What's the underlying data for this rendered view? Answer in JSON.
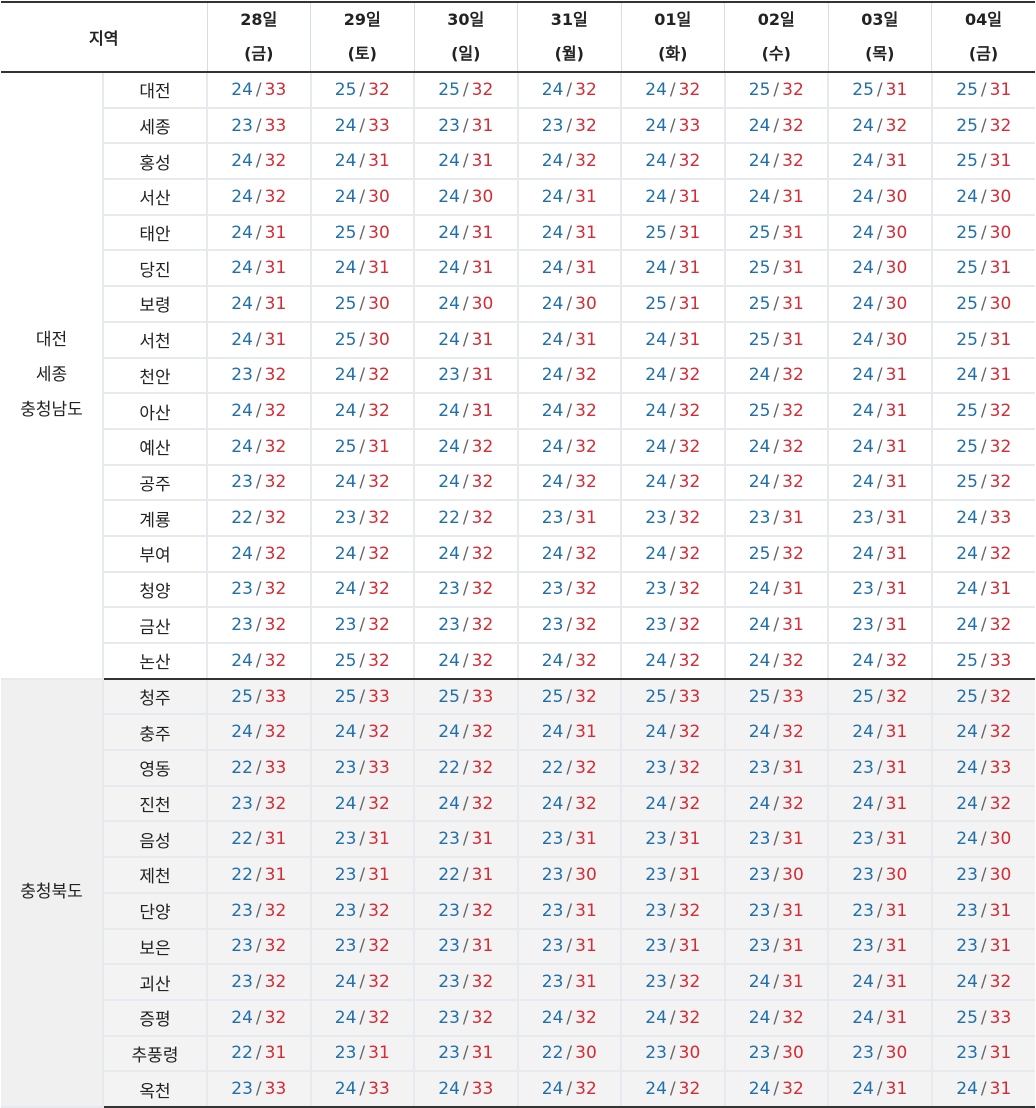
{
  "header": {
    "region_label": "지역",
    "days": [
      {
        "date": "28일",
        "weekday": "(금)"
      },
      {
        "date": "29일",
        "weekday": "(토)"
      },
      {
        "date": "30일",
        "weekday": "(일)"
      },
      {
        "date": "31일",
        "weekday": "(월)"
      },
      {
        "date": "01일",
        "weekday": "(화)"
      },
      {
        "date": "02일",
        "weekday": "(수)"
      },
      {
        "date": "03일",
        "weekday": "(목)"
      },
      {
        "date": "04일",
        "weekday": "(금)"
      }
    ]
  },
  "colors": {
    "low_temp": "#1f6fab",
    "high_temp": "#d62b35",
    "separator": "#666666"
  },
  "separator": "/",
  "groups": [
    {
      "region_lines": [
        "대전",
        "세종",
        "충청남도"
      ],
      "cities": [
        {
          "name": "대전",
          "temps": [
            [
              24,
              33
            ],
            [
              25,
              32
            ],
            [
              25,
              32
            ],
            [
              24,
              32
            ],
            [
              24,
              32
            ],
            [
              25,
              32
            ],
            [
              25,
              31
            ],
            [
              25,
              31
            ]
          ]
        },
        {
          "name": "세종",
          "temps": [
            [
              23,
              33
            ],
            [
              24,
              33
            ],
            [
              23,
              31
            ],
            [
              23,
              32
            ],
            [
              24,
              33
            ],
            [
              24,
              32
            ],
            [
              24,
              32
            ],
            [
              25,
              32
            ]
          ]
        },
        {
          "name": "홍성",
          "temps": [
            [
              24,
              32
            ],
            [
              24,
              31
            ],
            [
              24,
              31
            ],
            [
              24,
              32
            ],
            [
              24,
              32
            ],
            [
              24,
              32
            ],
            [
              24,
              31
            ],
            [
              25,
              31
            ]
          ]
        },
        {
          "name": "서산",
          "temps": [
            [
              24,
              32
            ],
            [
              24,
              30
            ],
            [
              24,
              30
            ],
            [
              24,
              31
            ],
            [
              24,
              31
            ],
            [
              24,
              31
            ],
            [
              24,
              30
            ],
            [
              24,
              30
            ]
          ]
        },
        {
          "name": "태안",
          "temps": [
            [
              24,
              31
            ],
            [
              25,
              30
            ],
            [
              24,
              31
            ],
            [
              24,
              31
            ],
            [
              25,
              31
            ],
            [
              25,
              31
            ],
            [
              24,
              30
            ],
            [
              25,
              30
            ]
          ]
        },
        {
          "name": "당진",
          "temps": [
            [
              24,
              31
            ],
            [
              24,
              31
            ],
            [
              24,
              31
            ],
            [
              24,
              31
            ],
            [
              24,
              31
            ],
            [
              25,
              31
            ],
            [
              24,
              30
            ],
            [
              25,
              31
            ]
          ]
        },
        {
          "name": "보령",
          "temps": [
            [
              24,
              31
            ],
            [
              25,
              30
            ],
            [
              24,
              30
            ],
            [
              24,
              30
            ],
            [
              25,
              31
            ],
            [
              25,
              31
            ],
            [
              24,
              30
            ],
            [
              25,
              30
            ]
          ]
        },
        {
          "name": "서천",
          "temps": [
            [
              24,
              31
            ],
            [
              25,
              30
            ],
            [
              24,
              31
            ],
            [
              24,
              31
            ],
            [
              24,
              31
            ],
            [
              25,
              31
            ],
            [
              24,
              30
            ],
            [
              25,
              31
            ]
          ]
        },
        {
          "name": "천안",
          "temps": [
            [
              23,
              32
            ],
            [
              24,
              32
            ],
            [
              23,
              31
            ],
            [
              24,
              32
            ],
            [
              24,
              32
            ],
            [
              24,
              32
            ],
            [
              24,
              31
            ],
            [
              24,
              31
            ]
          ]
        },
        {
          "name": "아산",
          "temps": [
            [
              24,
              32
            ],
            [
              24,
              32
            ],
            [
              24,
              31
            ],
            [
              24,
              32
            ],
            [
              24,
              32
            ],
            [
              25,
              32
            ],
            [
              24,
              31
            ],
            [
              25,
              32
            ]
          ]
        },
        {
          "name": "예산",
          "temps": [
            [
              24,
              32
            ],
            [
              25,
              31
            ],
            [
              24,
              32
            ],
            [
              24,
              32
            ],
            [
              24,
              32
            ],
            [
              24,
              32
            ],
            [
              24,
              31
            ],
            [
              25,
              32
            ]
          ]
        },
        {
          "name": "공주",
          "temps": [
            [
              23,
              32
            ],
            [
              24,
              32
            ],
            [
              24,
              32
            ],
            [
              24,
              32
            ],
            [
              24,
              32
            ],
            [
              24,
              32
            ],
            [
              24,
              31
            ],
            [
              25,
              32
            ]
          ]
        },
        {
          "name": "계룡",
          "temps": [
            [
              22,
              32
            ],
            [
              23,
              32
            ],
            [
              22,
              32
            ],
            [
              23,
              31
            ],
            [
              23,
              32
            ],
            [
              23,
              31
            ],
            [
              23,
              31
            ],
            [
              24,
              33
            ]
          ]
        },
        {
          "name": "부여",
          "temps": [
            [
              24,
              32
            ],
            [
              24,
              32
            ],
            [
              24,
              32
            ],
            [
              24,
              32
            ],
            [
              24,
              32
            ],
            [
              25,
              32
            ],
            [
              24,
              31
            ],
            [
              24,
              32
            ]
          ]
        },
        {
          "name": "청양",
          "temps": [
            [
              23,
              32
            ],
            [
              24,
              32
            ],
            [
              23,
              32
            ],
            [
              23,
              32
            ],
            [
              23,
              32
            ],
            [
              24,
              31
            ],
            [
              23,
              31
            ],
            [
              24,
              31
            ]
          ]
        },
        {
          "name": "금산",
          "temps": [
            [
              23,
              32
            ],
            [
              23,
              32
            ],
            [
              23,
              32
            ],
            [
              23,
              32
            ],
            [
              23,
              32
            ],
            [
              24,
              31
            ],
            [
              23,
              31
            ],
            [
              24,
              32
            ]
          ]
        },
        {
          "name": "논산",
          "temps": [
            [
              24,
              32
            ],
            [
              25,
              32
            ],
            [
              24,
              32
            ],
            [
              24,
              32
            ],
            [
              24,
              32
            ],
            [
              24,
              32
            ],
            [
              24,
              32
            ],
            [
              25,
              33
            ]
          ]
        }
      ]
    },
    {
      "region_lines": [
        "충청북도"
      ],
      "cities": [
        {
          "name": "청주",
          "temps": [
            [
              25,
              33
            ],
            [
              25,
              33
            ],
            [
              25,
              33
            ],
            [
              25,
              32
            ],
            [
              25,
              33
            ],
            [
              25,
              33
            ],
            [
              25,
              32
            ],
            [
              25,
              32
            ]
          ]
        },
        {
          "name": "충주",
          "temps": [
            [
              24,
              32
            ],
            [
              24,
              32
            ],
            [
              24,
              32
            ],
            [
              24,
              31
            ],
            [
              24,
              32
            ],
            [
              24,
              32
            ],
            [
              24,
              31
            ],
            [
              24,
              32
            ]
          ]
        },
        {
          "name": "영동",
          "temps": [
            [
              22,
              33
            ],
            [
              23,
              33
            ],
            [
              22,
              32
            ],
            [
              22,
              32
            ],
            [
              23,
              32
            ],
            [
              23,
              31
            ],
            [
              23,
              31
            ],
            [
              24,
              33
            ]
          ]
        },
        {
          "name": "진천",
          "temps": [
            [
              23,
              32
            ],
            [
              24,
              32
            ],
            [
              24,
              32
            ],
            [
              24,
              32
            ],
            [
              24,
              32
            ],
            [
              24,
              32
            ],
            [
              24,
              31
            ],
            [
              24,
              32
            ]
          ]
        },
        {
          "name": "음성",
          "temps": [
            [
              22,
              31
            ],
            [
              23,
              31
            ],
            [
              23,
              31
            ],
            [
              23,
              31
            ],
            [
              23,
              31
            ],
            [
              23,
              31
            ],
            [
              23,
              31
            ],
            [
              24,
              30
            ]
          ]
        },
        {
          "name": "제천",
          "temps": [
            [
              22,
              31
            ],
            [
              23,
              31
            ],
            [
              22,
              31
            ],
            [
              23,
              30
            ],
            [
              23,
              31
            ],
            [
              23,
              30
            ],
            [
              23,
              30
            ],
            [
              23,
              30
            ]
          ]
        },
        {
          "name": "단양",
          "temps": [
            [
              23,
              32
            ],
            [
              23,
              32
            ],
            [
              23,
              32
            ],
            [
              23,
              31
            ],
            [
              23,
              32
            ],
            [
              23,
              31
            ],
            [
              23,
              31
            ],
            [
              23,
              31
            ]
          ]
        },
        {
          "name": "보은",
          "temps": [
            [
              23,
              32
            ],
            [
              23,
              32
            ],
            [
              23,
              31
            ],
            [
              23,
              31
            ],
            [
              23,
              31
            ],
            [
              23,
              31
            ],
            [
              23,
              31
            ],
            [
              23,
              31
            ]
          ]
        },
        {
          "name": "괴산",
          "temps": [
            [
              23,
              32
            ],
            [
              24,
              32
            ],
            [
              23,
              32
            ],
            [
              23,
              31
            ],
            [
              23,
              32
            ],
            [
              24,
              31
            ],
            [
              24,
              31
            ],
            [
              24,
              32
            ]
          ]
        },
        {
          "name": "증평",
          "temps": [
            [
              24,
              32
            ],
            [
              24,
              32
            ],
            [
              23,
              32
            ],
            [
              24,
              32
            ],
            [
              24,
              32
            ],
            [
              24,
              32
            ],
            [
              24,
              31
            ],
            [
              25,
              33
            ]
          ]
        },
        {
          "name": "추풍령",
          "temps": [
            [
              22,
              31
            ],
            [
              23,
              31
            ],
            [
              23,
              31
            ],
            [
              22,
              30
            ],
            [
              23,
              30
            ],
            [
              23,
              30
            ],
            [
              23,
              30
            ],
            [
              23,
              31
            ]
          ]
        },
        {
          "name": "옥천",
          "temps": [
            [
              23,
              33
            ],
            [
              24,
              33
            ],
            [
              24,
              33
            ],
            [
              24,
              32
            ],
            [
              24,
              32
            ],
            [
              24,
              32
            ],
            [
              24,
              31
            ],
            [
              24,
              31
            ]
          ]
        }
      ]
    }
  ]
}
